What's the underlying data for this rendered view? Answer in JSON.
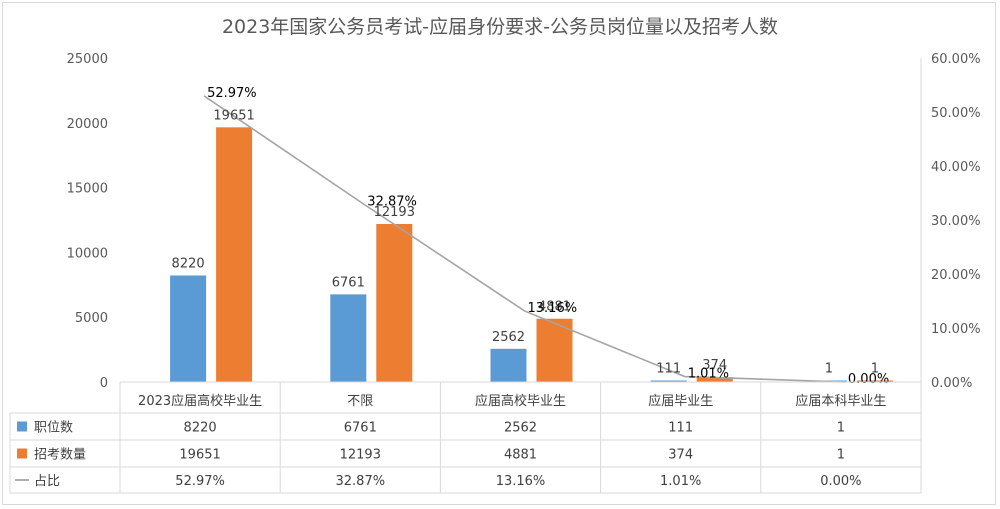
{
  "chart_data": {
    "type": "bar",
    "title": "2023年国家公务员考试-应届身份要求-公务员岗位量以及招考人数",
    "categories": [
      "2023应届高校毕业生",
      "不限",
      "应届高校毕业生",
      "应届毕业生",
      "应届本科毕业生"
    ],
    "series": [
      {
        "name": "职位数",
        "type": "bar",
        "color": "#5b9bd5",
        "values": [
          8220,
          6761,
          2562,
          111,
          1
        ],
        "labels": [
          "8220",
          "6761",
          "2562",
          "111",
          "1"
        ]
      },
      {
        "name": "招考数量",
        "type": "bar",
        "color": "#ed7d31",
        "values": [
          19651,
          12193,
          4881,
          374,
          1
        ],
        "labels": [
          "19651",
          "12193",
          "4881",
          "374",
          "1"
        ]
      },
      {
        "name": "占比",
        "type": "line",
        "axis": "right",
        "color": "#a5a5a5",
        "values": [
          52.97,
          32.87,
          13.16,
          1.01,
          0.0
        ],
        "labels": [
          "52.97%",
          "32.87%",
          "13.16%",
          "1.01%",
          "0.00%"
        ]
      }
    ],
    "y_left": {
      "min": 0,
      "max": 25000,
      "ticks": [
        "0",
        "5000",
        "10000",
        "15000",
        "20000",
        "25000"
      ]
    },
    "y_right": {
      "min": 0,
      "max": 60,
      "ticks": [
        "0.00%",
        "10.00%",
        "20.00%",
        "30.00%",
        "40.00%",
        "50.00%",
        "60.00%"
      ]
    },
    "data_table": true,
    "legend_placement": "data-table"
  }
}
